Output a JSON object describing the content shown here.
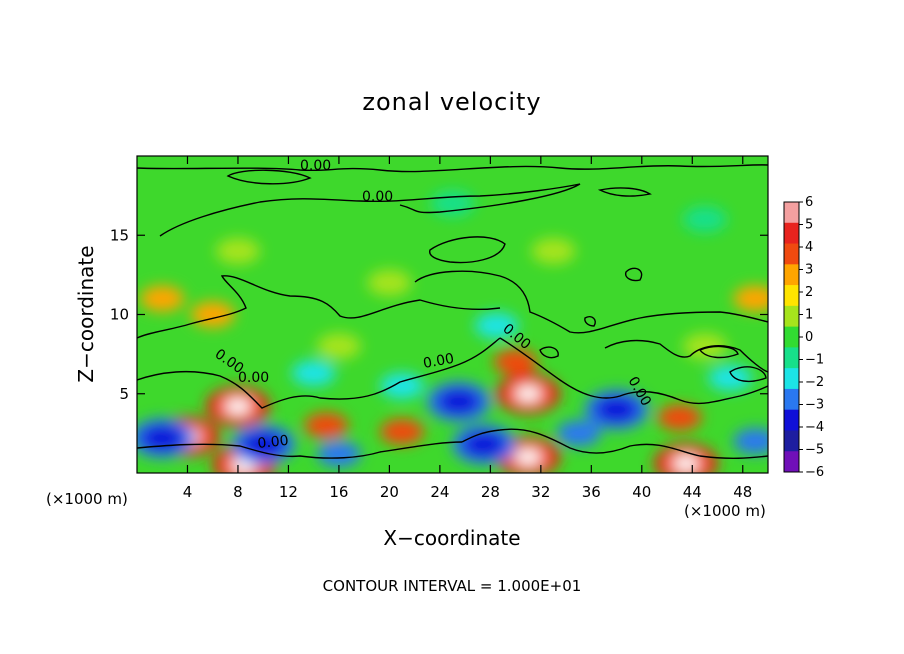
{
  "chart_data": {
    "type": "heatmap",
    "title": "zonal velocity",
    "xlabel": "X−coordinate",
    "ylabel": "Z−coordinate",
    "x_unit": "(×1000 m)",
    "y_unit": "(×1000 m)",
    "xlim": [
      0,
      50
    ],
    "ylim": [
      0,
      20
    ],
    "x_ticks": [
      4,
      8,
      12,
      16,
      20,
      24,
      28,
      32,
      36,
      40,
      44,
      48
    ],
    "y_ticks": [
      5,
      10,
      15
    ],
    "colorbar": {
      "ticks": [
        6,
        5,
        4,
        3,
        2,
        1,
        0,
        -1,
        -2,
        -3,
        -4,
        -5,
        -6
      ],
      "tick_labels": [
        "6",
        "5",
        "4",
        "3",
        "2",
        "1",
        "0",
        "−1",
        "−2",
        "−3",
        "−4",
        "−5",
        "−6"
      ],
      "colors": [
        "#f4a0a0",
        "#e8231e",
        "#f04a10",
        "#ffa500",
        "#ffe400",
        "#a6e41c",
        "#32dc32",
        "#17e08a",
        "#1ce4e6",
        "#2a78f0",
        "#1010d8",
        "#1e1ea0",
        "#7010b8"
      ]
    },
    "contour_labels": [
      "0.00",
      "0.00",
      "0.00",
      "0.00",
      "0.00",
      "0.00",
      "0.00",
      "0.00"
    ],
    "features": [
      {
        "x": 8.0,
        "z": 4.2,
        "value": 6
      },
      {
        "x": 4.0,
        "z": 2.3,
        "value": 6
      },
      {
        "x": 31.0,
        "z": 5.0,
        "value": 6
      },
      {
        "x": 31.0,
        "z": 1.0,
        "value": 6
      },
      {
        "x": 8.5,
        "z": 0.5,
        "value": 6
      },
      {
        "x": 43.5,
        "z": 0.6,
        "value": 6
      },
      {
        "x": 30.0,
        "z": 7.0,
        "value": 4
      },
      {
        "x": 43.0,
        "z": 3.5,
        "value": 4
      },
      {
        "x": 15.0,
        "z": 3.0,
        "value": 4
      },
      {
        "x": 21.0,
        "z": 2.6,
        "value": 4
      },
      {
        "x": 2.0,
        "z": 11.0,
        "value": 3
      },
      {
        "x": 49.0,
        "z": 11.0,
        "value": 3
      },
      {
        "x": 6.0,
        "z": 10.0,
        "value": 3
      },
      {
        "x": 2.0,
        "z": 2.2,
        "value": -4
      },
      {
        "x": 10.0,
        "z": 1.8,
        "value": -4
      },
      {
        "x": 25.5,
        "z": 4.5,
        "value": -4
      },
      {
        "x": 38.0,
        "z": 4.0,
        "value": -4
      },
      {
        "x": 49.0,
        "z": 2.0,
        "value": -3
      },
      {
        "x": 16.0,
        "z": 1.2,
        "value": -3
      },
      {
        "x": 35.0,
        "z": 2.5,
        "value": -3
      },
      {
        "x": 27.5,
        "z": 1.8,
        "value": -4
      },
      {
        "x": 21.0,
        "z": 5.5,
        "value": -2
      },
      {
        "x": 14.0,
        "z": 6.3,
        "value": -2
      },
      {
        "x": 28.5,
        "z": 9.3,
        "value": -2
      },
      {
        "x": 47.0,
        "z": 6.0,
        "value": -2
      },
      {
        "x": 8.0,
        "z": 14.0,
        "value": 1
      },
      {
        "x": 33.0,
        "z": 14.0,
        "value": 1
      },
      {
        "x": 16.0,
        "z": 8.0,
        "value": 1
      },
      {
        "x": 45.0,
        "z": 8.0,
        "value": 1
      },
      {
        "x": 20.0,
        "z": 12.0,
        "value": 1
      },
      {
        "x": 25.0,
        "z": 17.0,
        "value": -1
      },
      {
        "x": 45.0,
        "z": 16.0,
        "value": -1
      }
    ]
  },
  "footer": "CONTOUR INTERVAL = 1.000E+01"
}
